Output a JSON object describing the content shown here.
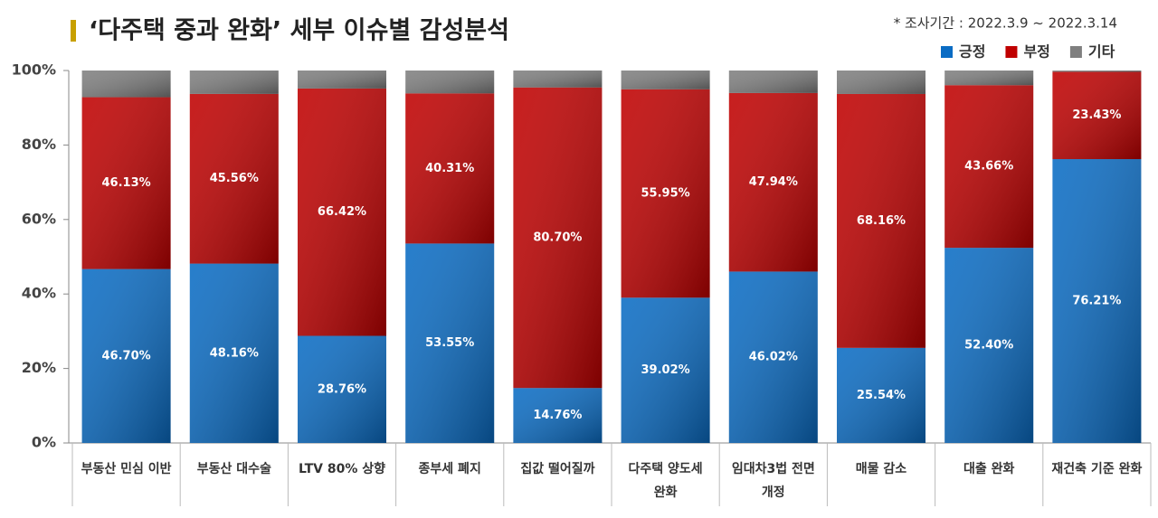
{
  "chart_data": {
    "type": "stacked_bar",
    "title": "‘다주택 중과 완화’ 세부 이슈별 감성분석",
    "subtitle": "* 조사기간 : 2022.3.9 ~ 2022.3.14",
    "categories": [
      "부동산 민심 이반",
      "부동산 대수술",
      "LTV 80% 상향",
      "종부세 폐지",
      "집값 떨어질까",
      "다주택 양도세 완화",
      "임대차3법 전면 개정",
      "매물 감소",
      "대출 완화",
      "재건축 기준 완화"
    ],
    "series": [
      {
        "name": "긍정",
        "color": "#0a6cc4",
        "values": [
          46.7,
          48.16,
          28.76,
          53.55,
          14.76,
          39.02,
          46.02,
          25.54,
          52.4,
          76.21
        ],
        "value_labels": [
          "46.70%",
          "48.16%",
          "28.76%",
          "53.55%",
          "14.76%",
          "39.02%",
          "46.02%",
          "25.54%",
          "52.40%",
          "76.21%"
        ]
      },
      {
        "name": "부정",
        "color": "#c00000",
        "values": [
          46.13,
          45.56,
          66.42,
          40.31,
          80.7,
          55.95,
          47.94,
          68.16,
          43.66,
          23.43
        ],
        "value_labels": [
          "46.13%",
          "45.56%",
          "66.42%",
          "40.31%",
          "80.70%",
          "55.95%",
          "47.94%",
          "68.16%",
          "43.66%",
          "23.43%"
        ]
      },
      {
        "name": "기타",
        "color": "#7f7f7f",
        "values": [
          7.17,
          6.28,
          4.82,
          6.14,
          4.54,
          5.03,
          6.04,
          6.3,
          3.94,
          0.36
        ]
      }
    ],
    "ylim": [
      0,
      100
    ],
    "yticks": [
      {
        "value": 0,
        "label": "0%"
      },
      {
        "value": 20,
        "label": "20%"
      },
      {
        "value": 40,
        "label": "40%"
      },
      {
        "value": 60,
        "label": "60%"
      },
      {
        "value": 80,
        "label": "80%"
      },
      {
        "value": 100,
        "label": "100%"
      }
    ],
    "legend": "top-right"
  }
}
